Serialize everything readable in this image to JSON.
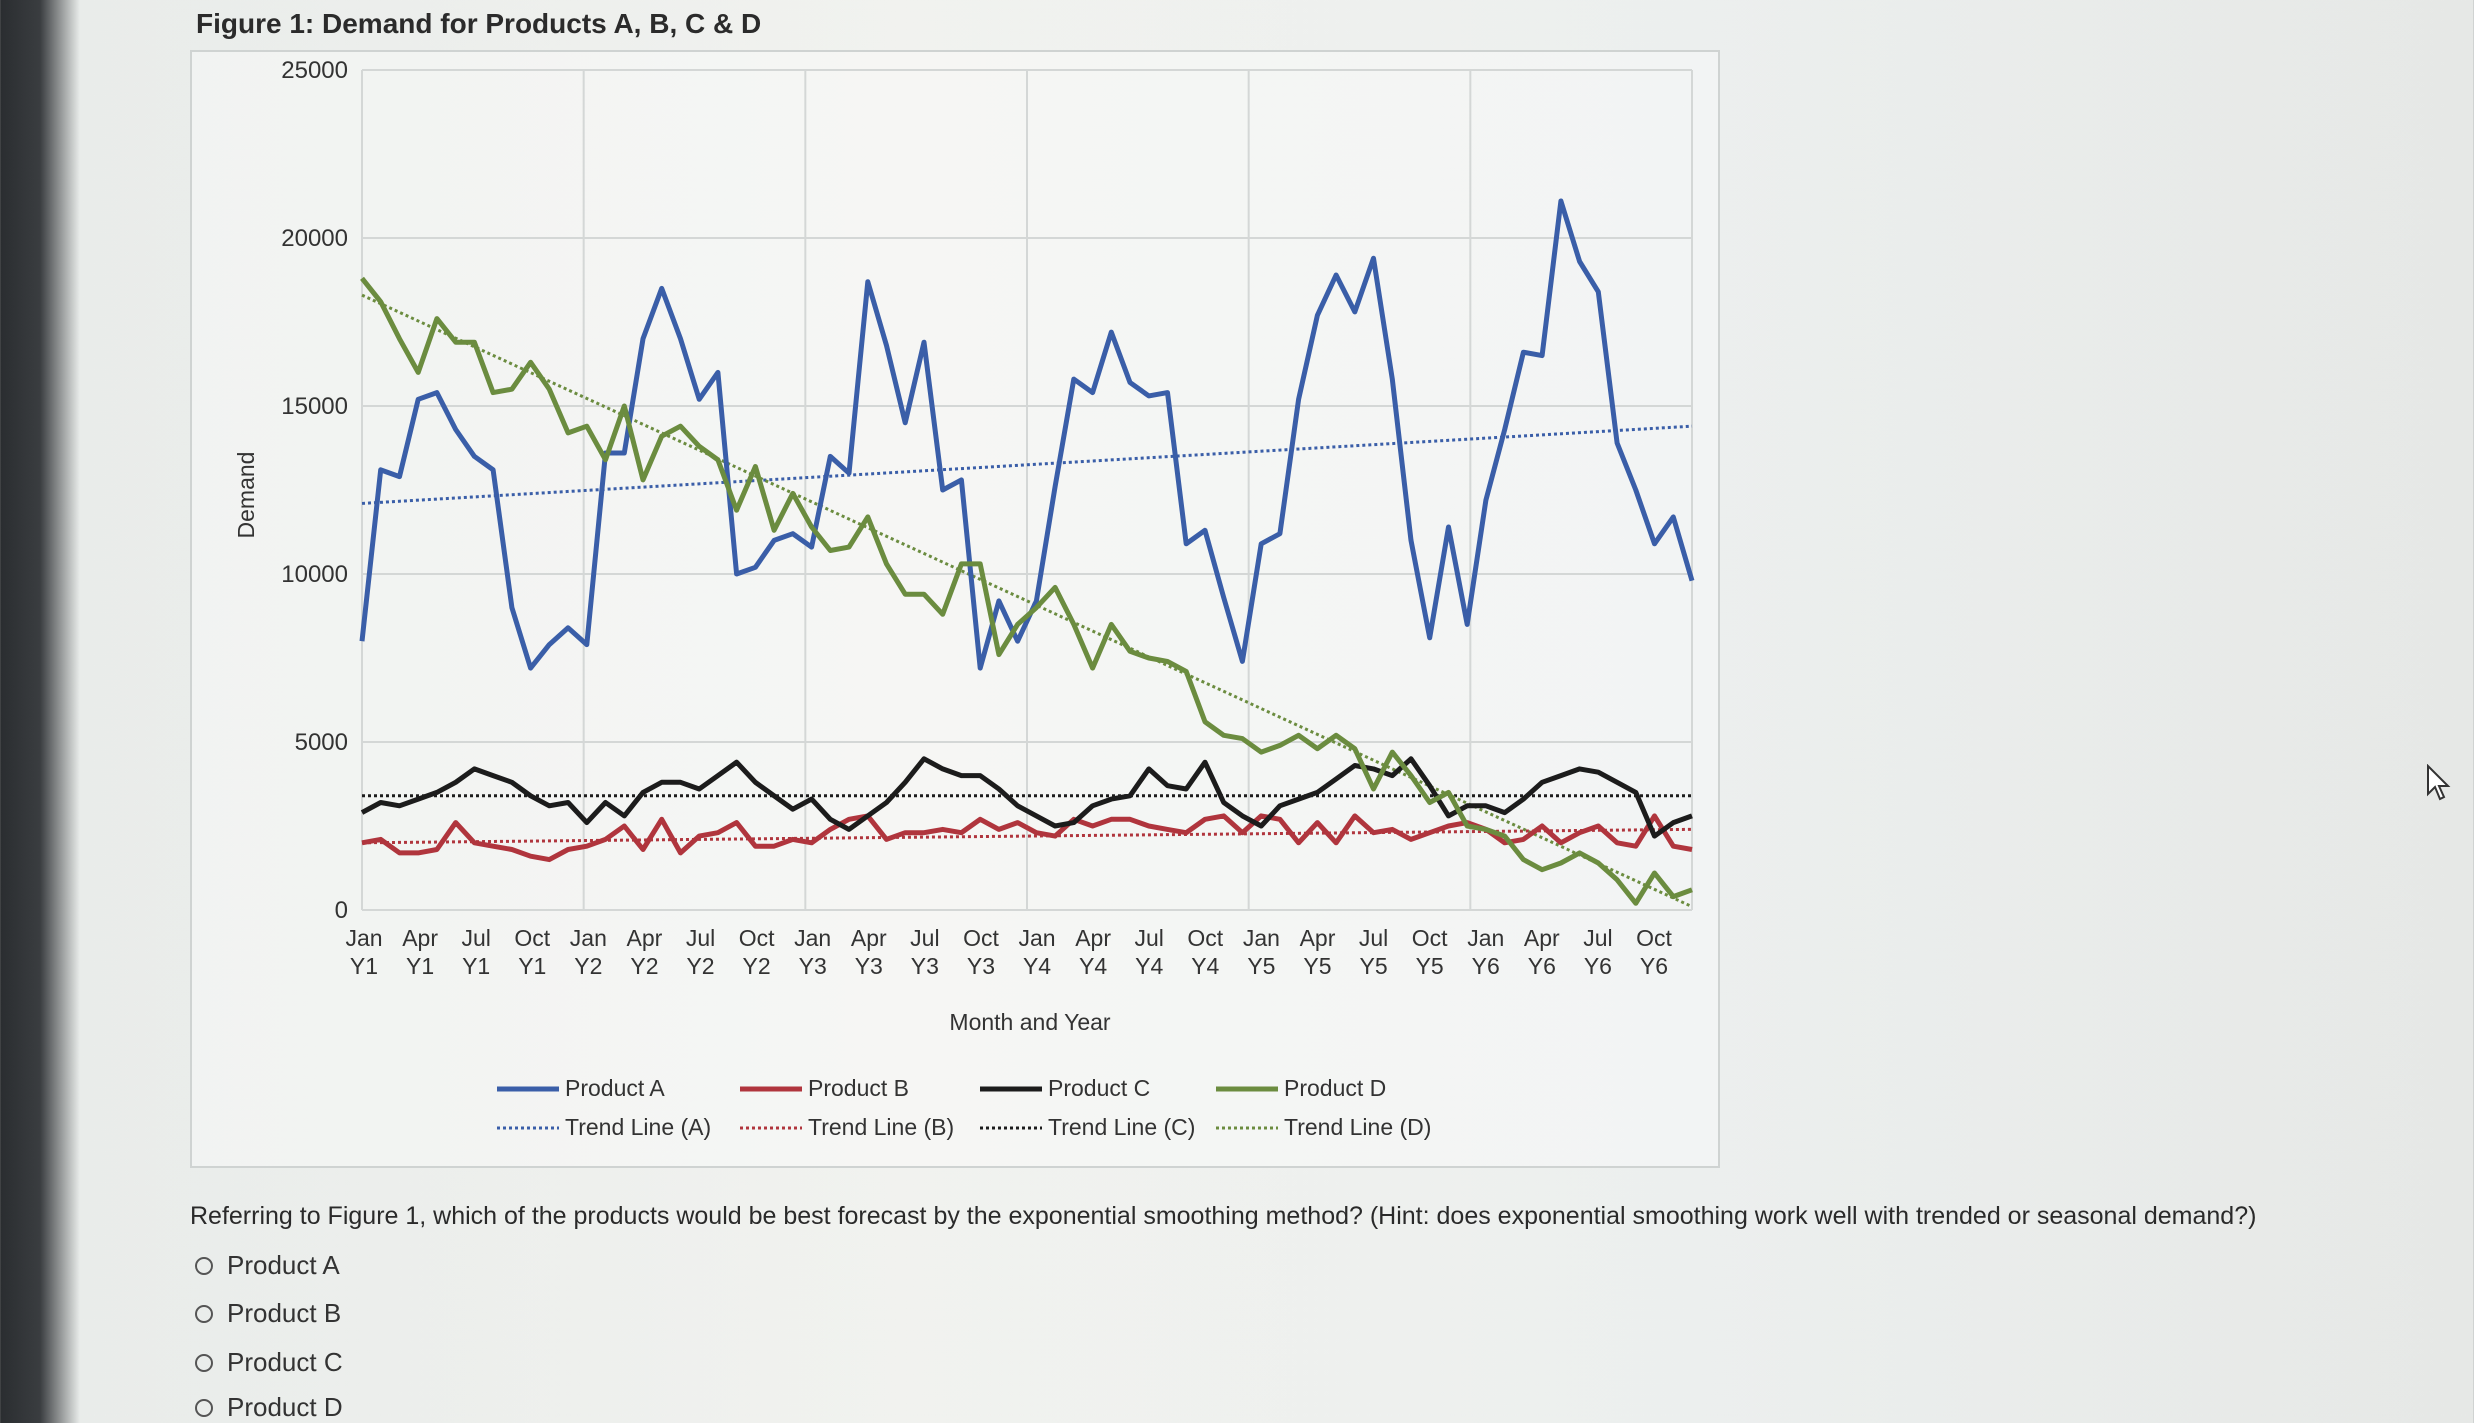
{
  "figure_title": "Figure 1: Demand for Products A, B, C & D",
  "question": "Referring to Figure 1, which of the products would be best forecast by the exponential smoothing method? (Hint: does exponential smoothing work well with trended or seasonal demand?)",
  "options": [
    "Product A",
    "Product B",
    "Product C",
    "Product D"
  ],
  "chart_data": {
    "type": "line",
    "title": "Figure 1: Demand for Products A, B, C & D",
    "xlabel": "Month and Year",
    "ylabel": "Demand",
    "ylim": [
      0,
      25000
    ],
    "yticks": [
      "25000",
      "20000",
      "15000",
      "10000",
      "5000",
      "0"
    ],
    "tick_labels": [
      [
        "Jan",
        "Y1"
      ],
      [
        "Apr",
        "Y1"
      ],
      [
        "Jul",
        "Y1"
      ],
      [
        "Oct",
        "Y1"
      ],
      [
        "Jan",
        "Y2"
      ],
      [
        "Apr",
        "Y2"
      ],
      [
        "Jul",
        "Y2"
      ],
      [
        "Oct",
        "Y2"
      ],
      [
        "Jan",
        "Y3"
      ],
      [
        "Apr",
        "Y3"
      ],
      [
        "Jul",
        "Y3"
      ],
      [
        "Oct",
        "Y3"
      ],
      [
        "Jan",
        "Y4"
      ],
      [
        "Apr",
        "Y4"
      ],
      [
        "Jul",
        "Y4"
      ],
      [
        "Oct",
        "Y4"
      ],
      [
        "Jan",
        "Y5"
      ],
      [
        "Apr",
        "Y5"
      ],
      [
        "Jul",
        "Y5"
      ],
      [
        "Oct",
        "Y5"
      ],
      [
        "Jan",
        "Y6"
      ],
      [
        "Apr",
        "Y6"
      ],
      [
        "Jul",
        "Y6"
      ],
      [
        "Oct",
        "Y6"
      ]
    ],
    "n_months": 72,
    "series": [
      {
        "name": "Product A",
        "color": "#3a5ea8",
        "values": [
          8000,
          13100,
          12900,
          15200,
          15400,
          14300,
          13500,
          13100,
          9000,
          7200,
          7900,
          8400,
          7900,
          13600,
          13600,
          17000,
          18500,
          17000,
          15200,
          16000,
          10000,
          10200,
          11000,
          11200,
          10800,
          13500,
          13000,
          18700,
          16800,
          14500,
          16900,
          12500,
          12800,
          7200,
          9200,
          8000,
          9200,
          12600,
          15800,
          15400,
          17200,
          15700,
          15300,
          15400,
          10900,
          11300,
          9300,
          7400,
          10900,
          11200,
          15200,
          17700,
          18900,
          17800,
          19400,
          15800,
          11000,
          8100,
          11400,
          8500,
          12200,
          14300,
          16600,
          16500,
          21100,
          19300,
          18400,
          13900,
          12500,
          10900,
          11700,
          9800
        ]
      },
      {
        "name": "Product B",
        "color": "#b0353d",
        "values": [
          2000,
          2100,
          1700,
          1700,
          1800,
          2600,
          2000,
          1900,
          1800,
          1600,
          1500,
          1800,
          1900,
          2100,
          2500,
          1800,
          2700,
          1700,
          2200,
          2300,
          2600,
          1900,
          1900,
          2100,
          2000,
          2400,
          2700,
          2800,
          2100,
          2300,
          2300,
          2400,
          2300,
          2700,
          2400,
          2600,
          2300,
          2200,
          2700,
          2500,
          2700,
          2700,
          2500,
          2400,
          2300,
          2700,
          2800,
          2300,
          2800,
          2700,
          2000,
          2600,
          2000,
          2800,
          2300,
          2400,
          2100,
          2300,
          2500,
          2600,
          2400,
          2000,
          2100,
          2500,
          2000,
          2300,
          2500,
          2000,
          1900,
          2800,
          1900,
          1800
        ]
      },
      {
        "name": "Product C",
        "color": "#1c1c1c",
        "values": [
          2900,
          3200,
          3100,
          3300,
          3500,
          3800,
          4200,
          4000,
          3800,
          3400,
          3100,
          3200,
          2600,
          3200,
          2800,
          3500,
          3800,
          3800,
          3600,
          4000,
          4400,
          3800,
          3400,
          3000,
          3300,
          2700,
          2400,
          2800,
          3200,
          3800,
          4500,
          4200,
          4000,
          4000,
          3600,
          3100,
          2800,
          2500,
          2600,
          3100,
          3300,
          3400,
          4200,
          3700,
          3600,
          4400,
          3200,
          2800,
          2500,
          3100,
          3300,
          3500,
          3900,
          4300,
          4200,
          4000,
          4500,
          3700,
          2800,
          3100,
          3100,
          2900,
          3300,
          3800,
          4000,
          4200,
          4100,
          3800,
          3500,
          2200,
          2600,
          2800
        ]
      },
      {
        "name": "Product D",
        "color": "#6b8c3f",
        "values": [
          18800,
          18100,
          17000,
          16000,
          17600,
          16900,
          16900,
          15400,
          15500,
          16300,
          15500,
          14200,
          14400,
          13400,
          15000,
          12800,
          14100,
          14400,
          13800,
          13400,
          11900,
          13200,
          11300,
          12400,
          11400,
          10700,
          10800,
          11700,
          10300,
          9400,
          9400,
          8800,
          10300,
          10300,
          7600,
          8500,
          9000,
          9600,
          8500,
          7200,
          8500,
          7700,
          7500,
          7400,
          7100,
          5600,
          5200,
          5100,
          4700,
          4900,
          5200,
          4800,
          5200,
          4800,
          3600,
          4700,
          4000,
          3200,
          3500,
          2500,
          2400,
          2200,
          1500,
          1200,
          1400,
          1700,
          1400,
          900,
          200,
          1100,
          400,
          600
        ]
      },
      {
        "name": "Trend Line (A)",
        "color": "#3a5ea8",
        "dotted": true,
        "values": [
          12100,
          14400
        ]
      },
      {
        "name": "Trend Line (B)",
        "color": "#b0353d",
        "dotted": true,
        "values": [
          2000,
          2400
        ]
      },
      {
        "name": "Trend Line (C)",
        "color": "#1c1c1c",
        "dotted": true,
        "values": [
          3400,
          3400
        ]
      },
      {
        "name": "Trend Line (D)",
        "color": "#6b8c3f",
        "dotted": true,
        "values": [
          18300,
          100
        ]
      }
    ],
    "legend": [
      {
        "name": "Product A",
        "color": "#3a5ea8",
        "dotted": false
      },
      {
        "name": "Product B",
        "color": "#b0353d",
        "dotted": false
      },
      {
        "name": "Product C",
        "color": "#1c1c1c",
        "dotted": false
      },
      {
        "name": "Product D",
        "color": "#6b8c3f",
        "dotted": false
      },
      {
        "name": "Trend Line (A)",
        "color": "#3a5ea8",
        "dotted": true
      },
      {
        "name": "Trend Line (B)",
        "color": "#b0353d",
        "dotted": true
      },
      {
        "name": "Trend Line (C)",
        "color": "#1c1c1c",
        "dotted": true
      },
      {
        "name": "Trend Line (D)",
        "color": "#6b8c3f",
        "dotted": true
      }
    ],
    "legend_position": "bottom",
    "grid": true
  }
}
